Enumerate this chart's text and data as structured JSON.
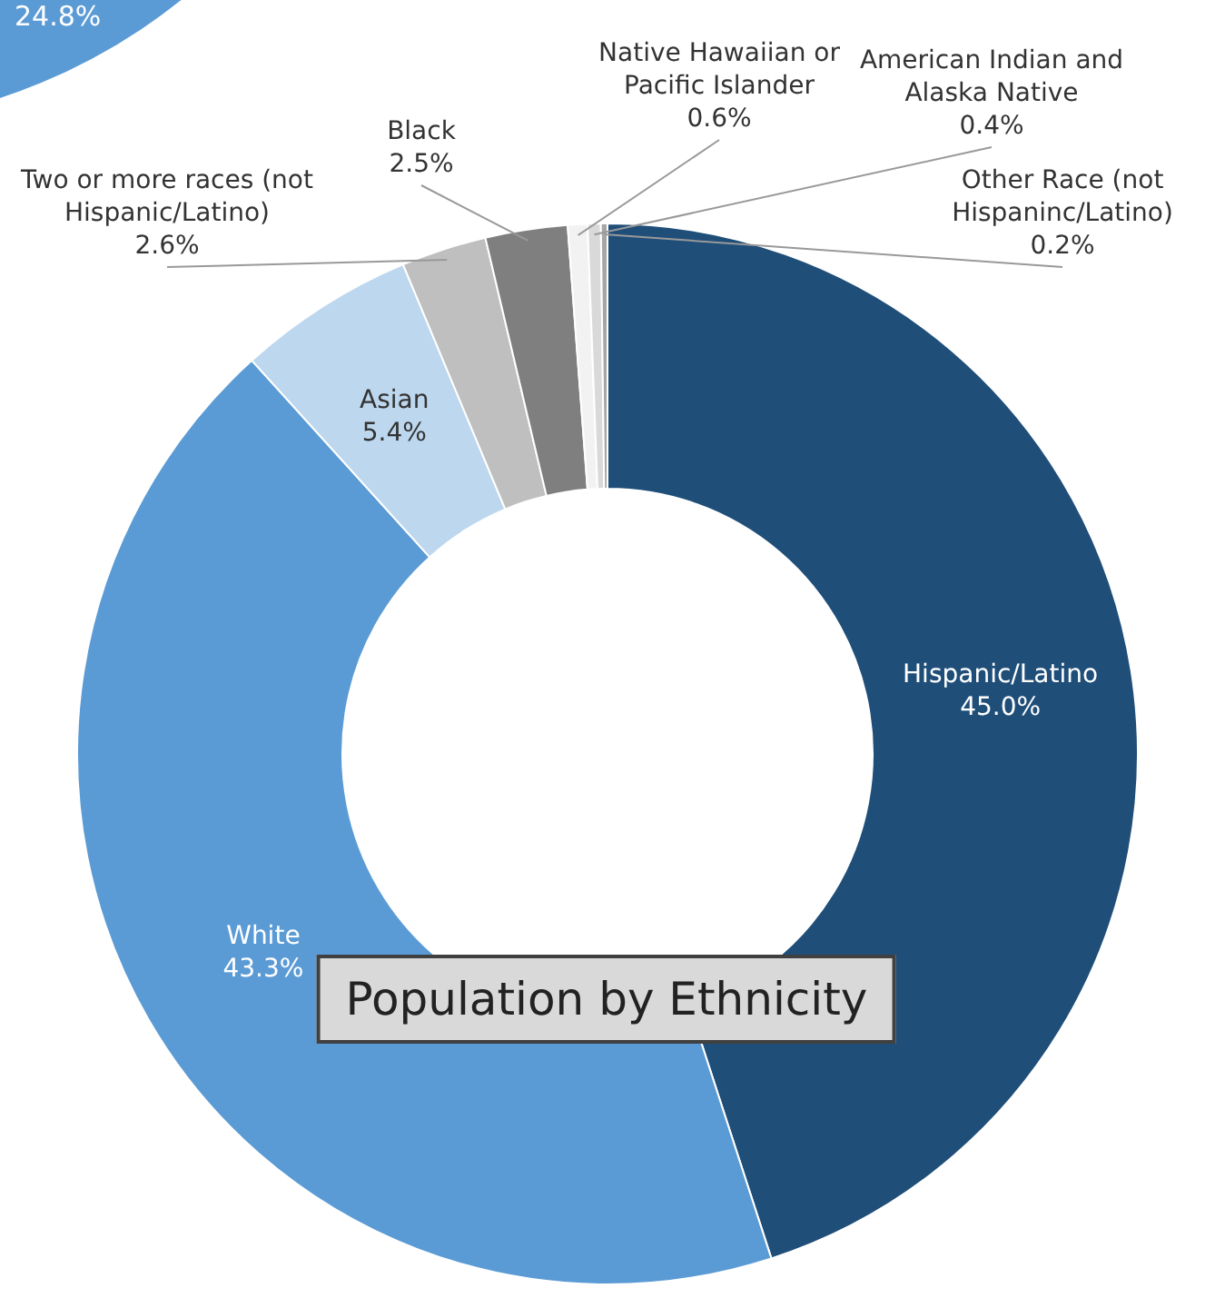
{
  "chart_data": {
    "type": "donut",
    "title": "Population by Ethnicity",
    "categories": [
      "Hispanic/Latino",
      "White",
      "Asian",
      "Two or more races (not Hispanic/Latino)",
      "Black",
      "Native Hawaiian or Pacific Islander",
      "American Indian and Alaska Native",
      "Other Race (not Hispaninc/Latino)"
    ],
    "values": [
      45.0,
      43.3,
      5.4,
      2.6,
      2.5,
      0.6,
      0.4,
      0.2
    ],
    "colors": [
      "#1f4e79",
      "#5b9bd5",
      "#bdd7ee",
      "#bfbfbf",
      "#7f7f7f",
      "#f2f2f2",
      "#d9d9d9",
      "#a6a6a6"
    ],
    "value_labels": [
      "45.0%",
      "43.3%",
      "5.4%",
      "2.6%",
      "2.5%",
      "0.6%",
      "0.4%",
      "0.2%"
    ],
    "legend": false,
    "annotations": [
      "24.8%"
    ]
  }
}
